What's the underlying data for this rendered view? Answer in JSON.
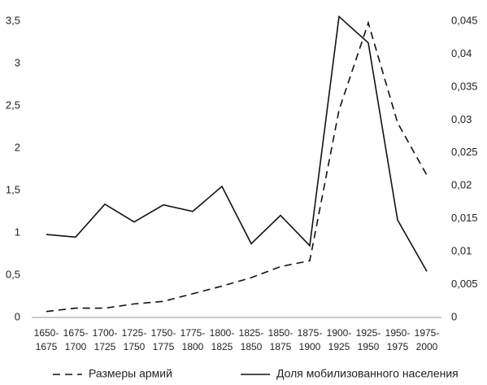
{
  "chart_data": {
    "type": "line",
    "categories": [
      [
        "1650-",
        "1675"
      ],
      [
        "1675-",
        "1700"
      ],
      [
        "1700-",
        "1725"
      ],
      [
        "1725-",
        "1750"
      ],
      [
        "1750-",
        "1775"
      ],
      [
        "1775-",
        "1800"
      ],
      [
        "1800-",
        "1825"
      ],
      [
        "1825-",
        "1850"
      ],
      [
        "1850-",
        "1875"
      ],
      [
        "1875-",
        "1900"
      ],
      [
        "1900-",
        "1925"
      ],
      [
        "1925-",
        "1950"
      ],
      [
        "1950-",
        "1975"
      ],
      [
        "1975-",
        "2000"
      ]
    ],
    "series": [
      {
        "name": "Размеры армий",
        "color": "#111111",
        "dash": true,
        "axis": "y",
        "values": [
          0.07,
          0.11,
          0.11,
          0.16,
          0.19,
          0.28,
          0.37,
          0.47,
          0.6,
          0.67,
          2.45,
          3.48,
          2.3,
          1.68
        ]
      },
      {
        "name": "Доля мобилизованного населения",
        "color": "#111111",
        "dash": false,
        "axis": "y2",
        "values": [
          0.0126,
          0.0122,
          0.0172,
          0.0145,
          0.0171,
          0.0161,
          0.0199,
          0.0112,
          0.0155,
          0.0109,
          0.0457,
          0.0417,
          0.0148,
          0.007
        ]
      }
    ],
    "ylim": [
      0,
      3.5
    ],
    "yticks": [
      0,
      {
        "value": 0.5,
        "label": "0,5"
      },
      1,
      {
        "value": 1.5,
        "label": "1,5"
      },
      2,
      {
        "value": 2.5,
        "label": "2,5"
      },
      3,
      {
        "value": 3.5,
        "label": "3,5"
      }
    ],
    "y2lim": [
      0,
      0.045
    ],
    "y2ticks": [
      0,
      {
        "value": 0.005,
        "label": "0,005"
      },
      {
        "value": 0.01,
        "label": "0,01"
      },
      {
        "value": 0.015,
        "label": "0,015"
      },
      {
        "value": 0.02,
        "label": "0,02"
      },
      {
        "value": 0.025,
        "label": "0,025"
      },
      {
        "value": 0.03,
        "label": "0,03"
      },
      {
        "value": 0.035,
        "label": "0,035"
      },
      {
        "value": 0.04,
        "label": "0,04"
      },
      {
        "value": 0.045,
        "label": "0,045"
      }
    ],
    "grid": false,
    "legend": "bottom"
  }
}
